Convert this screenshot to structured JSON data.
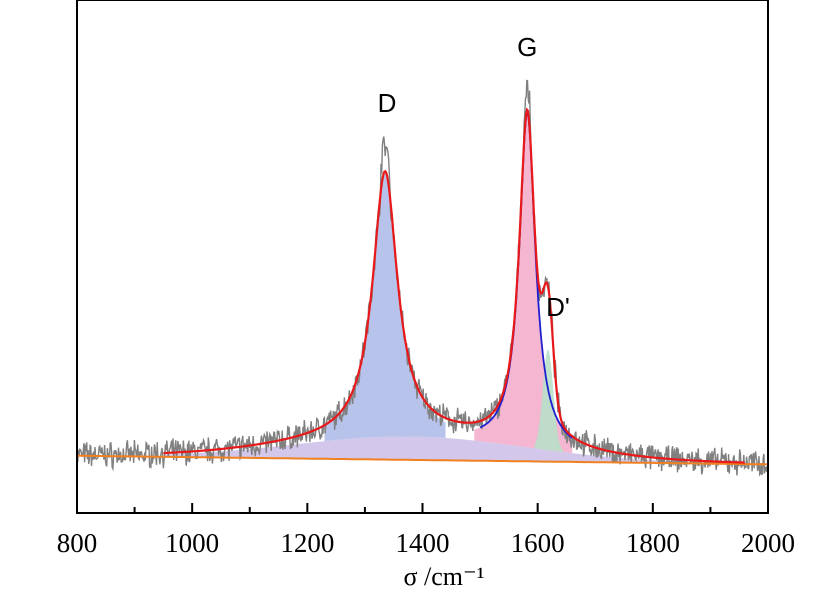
{
  "chart_data": {
    "type": "line",
    "title": "",
    "xlabel": "σ /cm⁻¹",
    "ylabel": "",
    "xlim": [
      800,
      2000
    ],
    "ylim": [
      0,
      1.0
    ],
    "x_ticks": [
      800,
      1000,
      1200,
      1400,
      1600,
      1800,
      2000
    ],
    "grid": false,
    "legend": "none",
    "peaks": [
      {
        "label": "D",
        "center": 1335,
        "height": 0.78
      },
      {
        "label": "G",
        "center": 1582,
        "height": 1.0
      },
      {
        "label": "D'",
        "center": 1618,
        "height": 0.45
      }
    ],
    "colors": {
      "raw": "#808080",
      "fit": "#e8191a",
      "baseline": "#f08020",
      "g_component": "#1f1fd0",
      "fill_d": "#aab8e6",
      "fill_g": "#f2a9c8",
      "fill_dprime": "#b8e0c8",
      "fill_broad": "#c4b6e6"
    }
  }
}
